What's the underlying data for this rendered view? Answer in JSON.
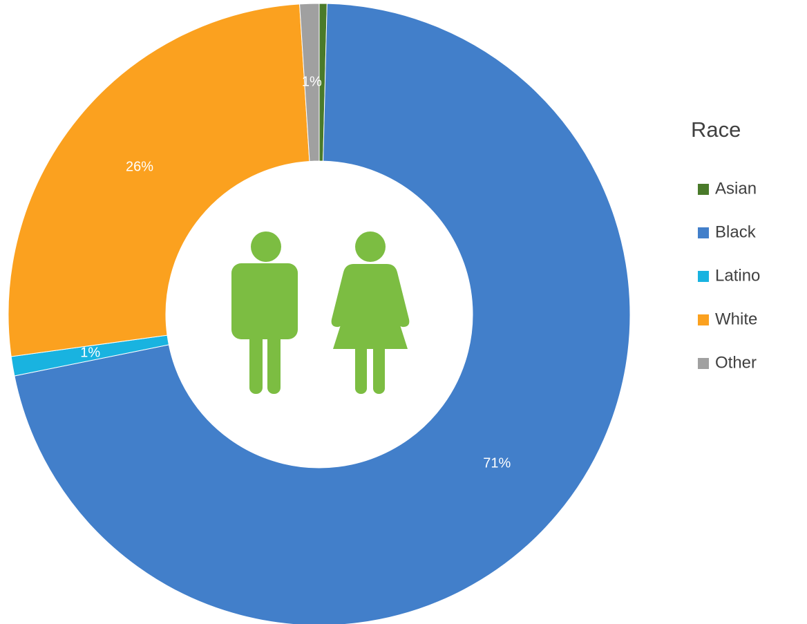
{
  "chart_data": {
    "type": "donut",
    "legend_title": "Race",
    "categories": [
      "Asian",
      "Black",
      "Latino",
      "White",
      "Other"
    ],
    "values": [
      0.4,
      71,
      1,
      26,
      1
    ],
    "value_labels": [
      null,
      "71%",
      "1%",
      "26%",
      "1%"
    ],
    "colors": [
      "#4a7a2a",
      "#427fca",
      "#19b3e0",
      "#fba11f",
      "#a0a0a0"
    ],
    "legend": "right"
  }
}
